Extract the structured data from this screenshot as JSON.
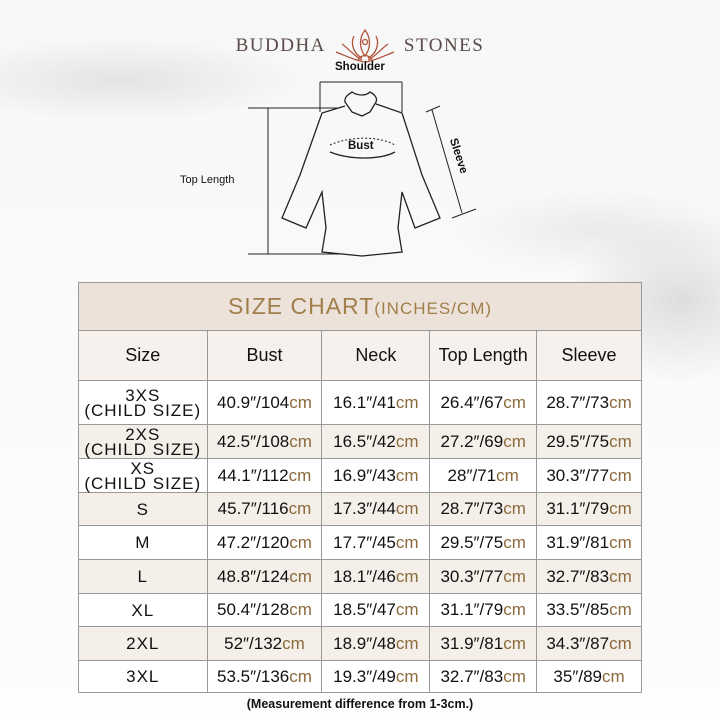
{
  "brand": {
    "left": "BUDDHA",
    "right": "STONES"
  },
  "diagram": {
    "shoulder": "Shoulder",
    "bust": "Bust",
    "sleeve": "Sleeve",
    "top_length": "Top Length"
  },
  "chart": {
    "title": "SIZE CHART",
    "title_units": "(INCHES/CM)",
    "headers": [
      "Size",
      "Bust",
      "Neck",
      "Top Length",
      "Sleeve"
    ],
    "unit": "cm",
    "rows": [
      {
        "size": "3XS",
        "sub": "(CHILD SIZE)",
        "cells": [
          "40.9″/104",
          "16.1″/41",
          "26.4″/67",
          "28.7″/73"
        ]
      },
      {
        "size": "2XS",
        "sub": "(CHILD SIZE)",
        "cells": [
          "42.5″/108",
          "16.5″/42",
          "27.2″/69",
          "29.5″/75"
        ]
      },
      {
        "size": "XS",
        "sub": "(CHILD SIZE)",
        "cells": [
          "44.1″/112",
          "16.9″/43",
          "28″/71",
          "30.3″/77"
        ]
      },
      {
        "size": "S",
        "cells": [
          "45.7″/116",
          "17.3″/44",
          "28.7″/73",
          "31.1″/79"
        ]
      },
      {
        "size": "M",
        "cells": [
          "47.2″/120",
          "17.7″/45",
          "29.5″/75",
          "31.9″/81"
        ]
      },
      {
        "size": "L",
        "cells": [
          "48.8″/124",
          "18.1″/46",
          "30.3″/77",
          "32.7″/83"
        ]
      },
      {
        "size": "XL",
        "cells": [
          "50.4″/128",
          "18.5″/47",
          "31.1″/79",
          "33.5″/85"
        ]
      },
      {
        "size": "2XL",
        "cells": [
          "52″/132",
          "18.9″/48",
          "31.9″/81",
          "34.3″/87"
        ]
      },
      {
        "size": "3XL",
        "cells": [
          "53.5″/136",
          "19.3″/49",
          "32.7″/83",
          "35″/89"
        ]
      }
    ],
    "note": "(Measurement difference from 1-3cm.)"
  },
  "colors": {
    "title": "#a07f4b",
    "unit": "#8b6a3c",
    "title_bg": "#ece2d9",
    "alt_row": "#f4efe9",
    "logo": "#b0533a"
  }
}
